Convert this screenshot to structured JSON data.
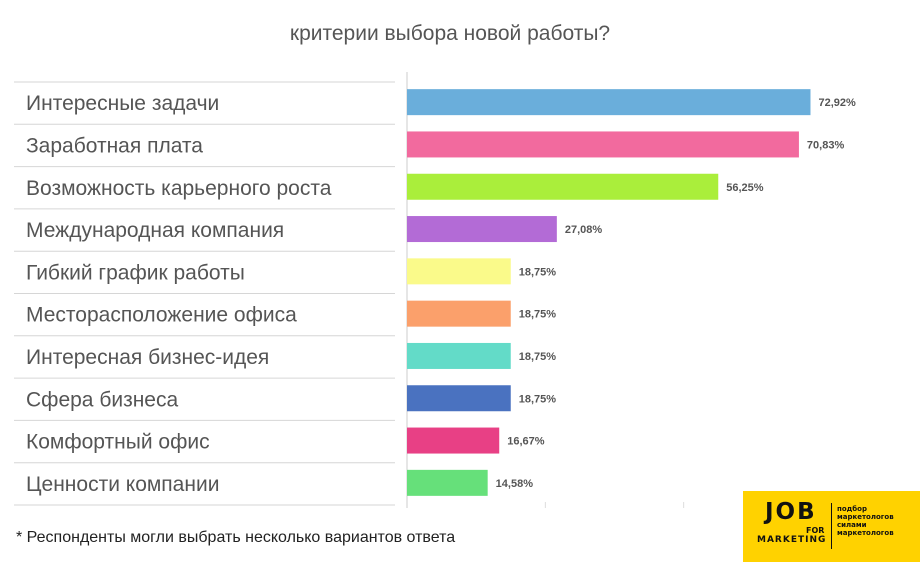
{
  "chart_data": {
    "type": "bar",
    "orientation": "horizontal",
    "title": "критерии выбора новой работы?",
    "categories": [
      "Интересные задачи",
      "Заработная плата",
      "Возможность карьерного роста",
      "Международная компания",
      "Гибкий график работы",
      "Месторасположение офиса",
      "Интересная бизнес-идея",
      "Сфера бизнеса",
      "Комфортный офис",
      "Ценности компании"
    ],
    "values": [
      72.92,
      70.83,
      56.25,
      27.08,
      18.75,
      18.75,
      18.75,
      18.75,
      16.67,
      14.58
    ],
    "value_labels": [
      "72,92%",
      "70,83%",
      "56,25%",
      "27,08%",
      "18,75%",
      "18,75%",
      "18,75%",
      "18,75%",
      "16,67%",
      "14,58%"
    ],
    "bar_colors": [
      "#6aaedb",
      "#f26a9e",
      "#aaee3b",
      "#b36bd6",
      "#fafa8a",
      "#fba06b",
      "#63dbc8",
      "#4a72c0",
      "#e84085",
      "#66e07a"
    ],
    "xlim": [
      0,
      75
    ],
    "grid": true,
    "legend": "none"
  },
  "footnote": "* Респонденты могли выбрать несколько вариантов ответа",
  "logo": {
    "job": "JOB",
    "for": "FOR",
    "marketing": "MARKETING",
    "tagline": [
      "подбор",
      "маркетологов",
      "силами",
      "маркетологов"
    ]
  }
}
